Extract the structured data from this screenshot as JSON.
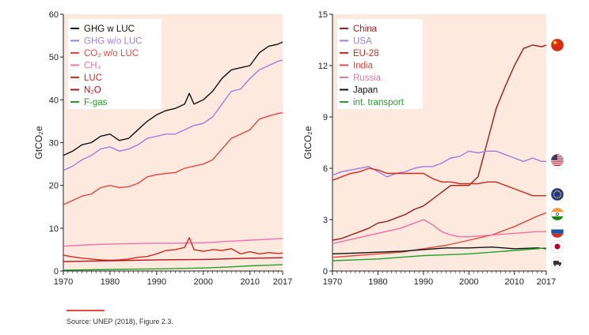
{
  "source": "Source: UNEP (2018), Figure 2.3.",
  "colors": {
    "panel_bg": "#fde9dd",
    "source_rule": "#e8473b"
  },
  "chart_data": [
    {
      "type": "line",
      "ylabel": "GtCO₂e",
      "xlim": [
        1970,
        2017
      ],
      "ylim": [
        0,
        60
      ],
      "xticks": [
        1970,
        1980,
        1990,
        2000,
        2010,
        2017
      ],
      "yticks": [
        0,
        10,
        20,
        30,
        40,
        50,
        60
      ],
      "legend_position": "top-left",
      "grid": false,
      "series": [
        {
          "name": "GHG w LUC",
          "color": "#111111",
          "x": [
            1970,
            1972,
            1974,
            1976,
            1978,
            1980,
            1982,
            1984,
            1986,
            1988,
            1990,
            1992,
            1994,
            1996,
            1997,
            1998,
            2000,
            2002,
            2004,
            2006,
            2008,
            2010,
            2012,
            2014,
            2016,
            2017
          ],
          "y": [
            27,
            28,
            29.5,
            30,
            31.5,
            32,
            30.5,
            31,
            33,
            35,
            36.5,
            37.5,
            38,
            39,
            41.5,
            39,
            40,
            42,
            45,
            47,
            47.5,
            48,
            51,
            52.5,
            53,
            53.5
          ]
        },
        {
          "name": "GHG w/o LUC",
          "color": "#9b7fe0",
          "x": [
            1970,
            1972,
            1974,
            1976,
            1978,
            1980,
            1982,
            1984,
            1986,
            1988,
            1990,
            1992,
            1994,
            1996,
            1998,
            2000,
            2002,
            2004,
            2006,
            2008,
            2010,
            2012,
            2014,
            2016,
            2017
          ],
          "y": [
            23.5,
            24.5,
            26,
            27,
            28.5,
            29,
            28,
            28.5,
            29.5,
            31,
            31.5,
            32,
            32,
            33,
            34,
            34.5,
            36,
            39,
            42,
            42.5,
            45,
            47,
            48,
            49,
            49.3
          ]
        },
        {
          "name": "CO₂ w/o LUC",
          "color": "#e8473b",
          "x": [
            1970,
            1972,
            1974,
            1976,
            1978,
            1980,
            1982,
            1984,
            1986,
            1988,
            1990,
            1992,
            1994,
            1996,
            1998,
            2000,
            2002,
            2004,
            2006,
            2008,
            2010,
            2012,
            2014,
            2016,
            2017
          ],
          "y": [
            15.5,
            16.5,
            17.5,
            18,
            19.5,
            20,
            19.5,
            19.7,
            20.5,
            22,
            22.5,
            22.8,
            23,
            24,
            24.5,
            25,
            26,
            28.5,
            31,
            32,
            33,
            35.5,
            36.2,
            36.8,
            37
          ]
        },
        {
          "name": "CH₄",
          "color": "#f070b0",
          "x": [
            1970,
            1975,
            1980,
            1985,
            1990,
            1995,
            2000,
            2005,
            2010,
            2015,
            2017
          ],
          "y": [
            5.8,
            6.1,
            6.3,
            6.4,
            6.5,
            6.5,
            6.6,
            6.9,
            7.2,
            7.5,
            7.6
          ]
        },
        {
          "name": "LUC",
          "color": "#d42a1e",
          "x": [
            1970,
            1972,
            1974,
            1976,
            1978,
            1980,
            1982,
            1984,
            1986,
            1988,
            1990,
            1992,
            1994,
            1996,
            1997,
            1998,
            2000,
            2002,
            2004,
            2006,
            2008,
            2010,
            2012,
            2014,
            2016,
            2017
          ],
          "y": [
            3.7,
            3.3,
            3,
            2.8,
            2.6,
            2.5,
            2.6,
            2.8,
            3.2,
            3.4,
            4,
            4.8,
            5,
            5.5,
            7.8,
            5,
            4.6,
            5,
            4.8,
            5.2,
            4,
            4.5,
            4,
            4.3,
            4.1,
            4.2
          ]
        },
        {
          "name": "N₂O",
          "color": "#b5121b",
          "x": [
            1970,
            1980,
            1990,
            2000,
            2010,
            2017
          ],
          "y": [
            2.2,
            2.4,
            2.6,
            2.7,
            3,
            3.1
          ]
        },
        {
          "name": "F-gas",
          "color": "#22a12b",
          "x": [
            1970,
            1980,
            1990,
            2000,
            2005,
            2010,
            2015,
            2017
          ],
          "y": [
            0.2,
            0.35,
            0.5,
            0.7,
            0.9,
            1.2,
            1.4,
            1.5
          ]
        }
      ]
    },
    {
      "type": "line",
      "ylabel": "GtCO₂e",
      "xlim": [
        1970,
        2017
      ],
      "ylim": [
        0,
        15
      ],
      "xticks": [
        1970,
        1980,
        1990,
        2000,
        2010,
        2017
      ],
      "yticks": [
        0,
        3,
        6,
        9,
        12,
        15
      ],
      "legend_position": "top-left",
      "grid": false,
      "series": [
        {
          "name": "China",
          "color": "#9e1b1b",
          "x": [
            1970,
            1972,
            1974,
            1976,
            1978,
            1980,
            1982,
            1984,
            1986,
            1988,
            1990,
            1992,
            1994,
            1996,
            1998,
            2000,
            2002,
            2004,
            2006,
            2008,
            2010,
            2012,
            2014,
            2016,
            2017
          ],
          "y": [
            1.8,
            1.9,
            2.1,
            2.3,
            2.5,
            2.8,
            2.9,
            3.1,
            3.3,
            3.6,
            3.8,
            4.2,
            4.6,
            5.0,
            5.0,
            5.0,
            5.5,
            7.5,
            9.5,
            10.8,
            12,
            13,
            13.2,
            13.1,
            13.2
          ]
        },
        {
          "name": "USA",
          "color": "#9b7fe0",
          "x": [
            1970,
            1972,
            1974,
            1976,
            1978,
            1980,
            1982,
            1984,
            1986,
            1988,
            1990,
            1992,
            1994,
            1996,
            1998,
            2000,
            2002,
            2004,
            2006,
            2008,
            2010,
            2012,
            2014,
            2016,
            2017
          ],
          "y": [
            5.6,
            5.8,
            5.9,
            6.0,
            6.1,
            5.8,
            5.5,
            5.7,
            5.8,
            6.0,
            6.1,
            6.1,
            6.3,
            6.6,
            6.7,
            7.0,
            6.9,
            7.0,
            7.0,
            6.8,
            6.6,
            6.4,
            6.6,
            6.4,
            6.4
          ]
        },
        {
          "name": "EU-28",
          "color": "#d42a1e",
          "x": [
            1970,
            1972,
            1974,
            1976,
            1978,
            1980,
            1982,
            1984,
            1986,
            1988,
            1990,
            1992,
            1994,
            1996,
            1998,
            2000,
            2002,
            2004,
            2006,
            2008,
            2010,
            2012,
            2014,
            2016,
            2017
          ],
          "y": [
            5.3,
            5.5,
            5.7,
            5.8,
            6.0,
            5.9,
            5.7,
            5.7,
            5.7,
            5.7,
            5.7,
            5.4,
            5.2,
            5.2,
            5.1,
            5.1,
            5.1,
            5.2,
            5.2,
            5.0,
            4.8,
            4.6,
            4.4,
            4.4,
            4.4
          ]
        },
        {
          "name": "India",
          "color": "#e8473b",
          "x": [
            1970,
            1975,
            1980,
            1985,
            1990,
            1995,
            2000,
            2005,
            2010,
            2015,
            2017
          ],
          "y": [
            0.8,
            0.9,
            1.0,
            1.1,
            1.3,
            1.5,
            1.8,
            2.1,
            2.6,
            3.2,
            3.4
          ]
        },
        {
          "name": "Russia",
          "color": "#f070a0",
          "x": [
            1970,
            1975,
            1980,
            1985,
            1988,
            1990,
            1992,
            1994,
            1996,
            1998,
            2000,
            2005,
            2010,
            2015,
            2017
          ],
          "y": [
            1.6,
            1.9,
            2.2,
            2.5,
            2.8,
            3.0,
            2.7,
            2.3,
            2.1,
            2.0,
            2.0,
            2.1,
            2.2,
            2.3,
            2.3
          ]
        },
        {
          "name": "Japan",
          "color": "#111111",
          "x": [
            1970,
            1975,
            1980,
            1985,
            1990,
            1995,
            2000,
            2005,
            2010,
            2015,
            2017
          ],
          "y": [
            1.0,
            1.05,
            1.1,
            1.15,
            1.25,
            1.35,
            1.35,
            1.4,
            1.3,
            1.35,
            1.3
          ]
        },
        {
          "name": "int. transport",
          "color": "#22a12b",
          "x": [
            1970,
            1975,
            1980,
            1985,
            1990,
            1995,
            2000,
            2005,
            2010,
            2015,
            2017
          ],
          "y": [
            0.6,
            0.65,
            0.7,
            0.8,
            0.9,
            0.95,
            1.0,
            1.1,
            1.2,
            1.3,
            1.35
          ]
        }
      ]
    }
  ]
}
